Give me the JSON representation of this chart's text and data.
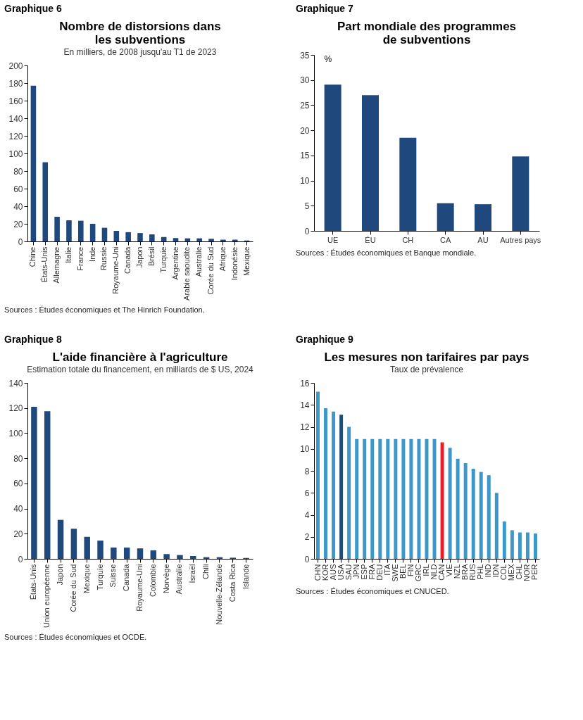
{
  "chart_data": [
    {
      "type": "bar",
      "title": "Nombre de distorsions dans\nles subventions",
      "subtitle": "En milliers, de 2008 jusqu'au T1 de 2023",
      "categories": [
        "Chine",
        "États-Unis",
        "Allemagne",
        "Italie",
        "France",
        "Inde",
        "Russie",
        "Royaume-Uni",
        "Canada",
        "Japon",
        "Brésil",
        "Turquie",
        "Argentine",
        "Arabie saoudite",
        "Australie",
        "Corée du Sud",
        "Afrique",
        "Indonésie",
        "Mexique"
      ],
      "values": [
        177,
        90,
        28,
        24,
        23.5,
        20,
        15.5,
        12,
        10.5,
        9.5,
        8,
        5,
        3.8,
        3.5,
        3.5,
        3,
        2,
        2,
        1
      ],
      "color": "#1f497d",
      "ylim": [
        0,
        200
      ],
      "yticks": [
        0,
        20,
        40,
        60,
        80,
        100,
        120,
        140,
        160,
        180,
        200
      ],
      "annotations": [
        "Graphique 6",
        "Sources : Études économiques et The Hinrich Foundation."
      ]
    },
    {
      "type": "bar",
      "title": "Part mondiale des programmes\nde subventions",
      "ylabel": "%",
      "categories": [
        "UE",
        "ÉU",
        "CH",
        "CA",
        "AU",
        "Autres pays"
      ],
      "values": [
        29.1,
        27,
        18.5,
        5.5,
        5.3,
        14.8
      ],
      "color": "#1f497d",
      "ylim": [
        0,
        35
      ],
      "yticks": [
        0,
        5,
        10,
        15,
        20,
        25,
        30,
        35
      ],
      "annotations": [
        "Graphique 7",
        "Sources : Études économiques et Banque mondiale."
      ]
    },
    {
      "type": "bar",
      "title": "L'aide financière à l'agriculture",
      "subtitle": "Estimation totale du financement, en milliards de $ US, 2024",
      "categories": [
        "États-Unis",
        "Union européenne",
        "Japon",
        "Corée du Sud",
        "Mexique",
        "Turquie",
        "Suisse",
        "Canada",
        "Royaume-Uni",
        "Colombie",
        "Norvège",
        "Australie",
        "Israël",
        "Chili",
        "Nouvelle-Zélande",
        "Costa Rica",
        "Islande"
      ],
      "values": [
        121,
        117.5,
        31,
        24,
        17.5,
        14.5,
        9,
        9,
        8.3,
        6.7,
        3.8,
        3,
        2.2,
        1.3,
        1.3,
        0.9,
        0.7
      ],
      "color": "#1f497d",
      "ylim": [
        0,
        140
      ],
      "yticks": [
        0,
        20,
        40,
        60,
        80,
        100,
        120,
        140
      ],
      "annotations": [
        "Graphique 8",
        "Sources : Études économiques et OCDE."
      ]
    },
    {
      "type": "bar",
      "title": "Les mesures non tarifaires par pays",
      "subtitle": "Taux de prévalence",
      "categories": [
        "CHN",
        "KOR",
        "AUS",
        "USA",
        "SAU",
        "JPN",
        "ESP",
        "FRA",
        "DEU",
        "ITA",
        "SWE",
        "BEL",
        "FIN",
        "GRC",
        "IRL",
        "NLD",
        "CAN",
        "VIE",
        "NZL",
        "BRA",
        "RUS",
        "PHL",
        "IND",
        "IDN",
        "COL",
        "MEX",
        "CHL",
        "NOR",
        "PER"
      ],
      "values": [
        15.2,
        13.7,
        13.4,
        13.1,
        12,
        10.9,
        10.9,
        10.9,
        10.9,
        10.9,
        10.9,
        10.9,
        10.9,
        10.9,
        10.9,
        10.9,
        10.6,
        10.1,
        9.1,
        8.7,
        8.2,
        7.9,
        7.6,
        6,
        3.4,
        2.6,
        2.4,
        2.4,
        2.3
      ],
      "colors": [
        "#3d97c9",
        "#3d97c9",
        "#3d97c9",
        "#1f4e79",
        "#3d97c9",
        "#3d97c9",
        "#3d97c9",
        "#3d97c9",
        "#3d97c9",
        "#3d97c9",
        "#3d97c9",
        "#3d97c9",
        "#3d97c9",
        "#3d97c9",
        "#3d97c9",
        "#3d97c9",
        "#e8202a",
        "#3d97c9",
        "#3d97c9",
        "#3d97c9",
        "#3d97c9",
        "#3d97c9",
        "#3d97c9",
        "#3d97c9",
        "#3d97c9",
        "#3d97c9",
        "#3d97c9",
        "#3d97c9",
        "#3d97c9"
      ],
      "ylim": [
        0,
        16
      ],
      "yticks": [
        0,
        2,
        4,
        6,
        8,
        10,
        12,
        14,
        16
      ],
      "annotations": [
        "Graphique 9",
        "Sources : Études économiques et CNUCED."
      ]
    }
  ]
}
